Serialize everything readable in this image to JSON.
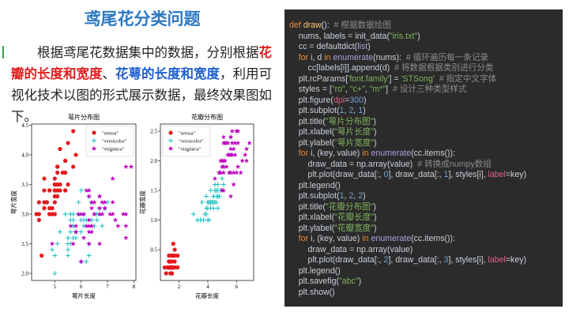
{
  "header": {
    "title": "鸢尾花分类问题"
  },
  "paragraph": {
    "part1": "根据鸢尾花数据集中的数据，分别根据",
    "highlight1": "花瓣的长度和宽度",
    "part2": "、",
    "highlight2": "花萼的长度和宽度",
    "part3": "，利用可视化技术以图的形式展示数据，最终效果图如下。"
  },
  "chart_data": [
    {
      "type": "scatter",
      "title": "萼片分布图",
      "x_label": "萼片长度",
      "y_label": "萼片宽度",
      "legend": "upper right",
      "xlim": [
        4.12,
        8.08
      ],
      "ylim": [
        1.88,
        4.52
      ],
      "xticks": [
        5,
        6,
        7,
        8
      ],
      "yticks": [
        {
          "value": 2,
          "label": "2.0"
        },
        {
          "value": 2.5,
          "label": "2.5"
        },
        {
          "value": 3,
          "label": "3.0"
        },
        {
          "value": 3.5,
          "label": "3.5"
        },
        {
          "value": 4,
          "label": "4.0"
        },
        {
          "value": 4.5,
          "label": "4.5"
        }
      ],
      "series": [
        {
          "name": "\"setosa\"",
          "color": "#e31a1c",
          "marker": "o",
          "x": [
            5.1,
            4.9,
            4.7,
            4.6,
            5.0,
            5.4,
            4.6,
            5.0,
            4.4,
            4.9,
            5.4,
            4.8,
            4.8,
            4.3,
            5.8,
            5.7,
            5.4,
            5.1,
            5.7,
            5.1,
            5.4,
            5.1,
            4.6,
            5.1,
            4.8,
            5.0,
            5.0,
            5.2,
            5.2,
            4.7,
            4.8,
            5.4,
            5.2,
            5.5,
            4.9,
            5.0,
            5.5,
            4.9,
            4.4,
            5.1,
            5.0,
            4.5,
            4.4,
            5.0,
            5.1,
            4.8,
            5.1,
            4.6,
            5.3,
            5.0
          ],
          "values": [
            3.5,
            3.0,
            3.2,
            3.1,
            3.6,
            3.9,
            3.4,
            3.4,
            2.9,
            3.1,
            3.7,
            3.4,
            3.0,
            3.0,
            4.0,
            4.4,
            3.9,
            3.5,
            3.8,
            3.8,
            3.4,
            3.7,
            3.6,
            3.3,
            3.4,
            3.0,
            3.4,
            3.5,
            3.4,
            3.2,
            3.1,
            3.4,
            4.1,
            4.2,
            3.1,
            3.2,
            3.5,
            3.1,
            3.0,
            3.4,
            3.5,
            2.3,
            3.2,
            3.5,
            3.8,
            3.0,
            3.8,
            3.2,
            3.7,
            3.3
          ]
        },
        {
          "name": "\"versicolor\"",
          "color": "#17bfbf",
          "marker": "+",
          "x": [
            7.0,
            6.4,
            6.9,
            5.5,
            6.5,
            5.7,
            6.3,
            4.9,
            6.6,
            5.2,
            5.0,
            5.9,
            6.0,
            6.1,
            5.6,
            6.7,
            5.6,
            5.8,
            6.2,
            5.6,
            5.9,
            6.1,
            6.3,
            6.1,
            6.4,
            6.6,
            6.8,
            6.7,
            6.0,
            5.7,
            5.5,
            5.5,
            5.8,
            6.0,
            5.4,
            6.0,
            6.7,
            6.3,
            5.6,
            5.5,
            5.5,
            6.1,
            5.8,
            5.0,
            5.6,
            5.7,
            5.7,
            6.2,
            5.1,
            5.7
          ],
          "values": [
            3.2,
            3.2,
            3.1,
            2.3,
            2.8,
            2.8,
            3.3,
            2.4,
            2.9,
            2.7,
            2.0,
            3.0,
            2.2,
            2.9,
            2.9,
            3.1,
            3.0,
            2.7,
            2.2,
            2.5,
            3.2,
            2.8,
            2.5,
            2.8,
            2.9,
            3.0,
            2.8,
            3.0,
            2.9,
            2.6,
            2.4,
            2.4,
            2.7,
            2.7,
            3.0,
            3.4,
            3.1,
            2.3,
            3.0,
            2.5,
            2.6,
            3.0,
            2.6,
            2.3,
            2.7,
            3.0,
            2.9,
            2.9,
            2.5,
            2.8
          ]
        },
        {
          "name": "\"virginica\"",
          "color": "#bf00bf",
          "marker": "*",
          "x": [
            6.3,
            5.8,
            7.1,
            6.3,
            6.5,
            7.6,
            4.9,
            7.3,
            6.7,
            7.2,
            6.5,
            6.4,
            6.8,
            5.7,
            5.8,
            6.4,
            6.5,
            7.7,
            7.7,
            6.0,
            6.9,
            5.6,
            7.7,
            6.3,
            6.7,
            7.2,
            6.2,
            6.1,
            6.4,
            7.2,
            7.4,
            7.9,
            6.4,
            6.3,
            6.1,
            7.7,
            6.3,
            6.4,
            6.0,
            6.9,
            6.7,
            6.9,
            5.8,
            6.8,
            6.7,
            6.7,
            6.3,
            6.5,
            6.2,
            5.9
          ],
          "values": [
            3.3,
            2.7,
            3.0,
            2.9,
            3.0,
            3.0,
            2.5,
            2.9,
            2.5,
            3.6,
            3.2,
            2.7,
            3.0,
            2.5,
            2.8,
            3.2,
            3.0,
            3.8,
            2.6,
            2.2,
            3.2,
            2.8,
            2.8,
            2.7,
            3.3,
            3.2,
            2.8,
            3.0,
            2.8,
            3.0,
            2.8,
            3.8,
            2.8,
            2.8,
            2.6,
            3.0,
            3.4,
            3.1,
            3.0,
            3.1,
            3.1,
            3.1,
            2.7,
            3.2,
            3.3,
            3.0,
            2.5,
            3.0,
            3.4,
            3.0
          ]
        }
      ]
    },
    {
      "type": "scatter",
      "title": "花瓣分布图",
      "x_label": "花瓣长度",
      "y_label": "花瓣宽度",
      "legend": "upper left",
      "xlim": [
        0.705,
        7.195
      ],
      "ylim": [
        -0.02,
        2.62
      ],
      "xticks": [
        2,
        4,
        6
      ],
      "yticks": [
        {
          "value": 0.5,
          "label": "0.5"
        },
        {
          "value": 1,
          "label": "1.0"
        },
        {
          "value": 1.5,
          "label": "1.5"
        },
        {
          "value": 2,
          "label": "2.0"
        },
        {
          "value": 2.5,
          "label": "2.5"
        }
      ],
      "series": [
        {
          "name": "\"setosa\"",
          "color": "#e31a1c",
          "marker": "o",
          "x": [
            1.4,
            1.4,
            1.3,
            1.5,
            1.4,
            1.7,
            1.4,
            1.5,
            1.4,
            1.5,
            1.5,
            1.6,
            1.4,
            1.1,
            1.2,
            1.5,
            1.3,
            1.4,
            1.7,
            1.5,
            1.7,
            1.5,
            1.0,
            1.7,
            1.9,
            1.6,
            1.6,
            1.5,
            1.4,
            1.6,
            1.6,
            1.5,
            1.5,
            1.4,
            1.5,
            1.2,
            1.3,
            1.5,
            1.3,
            1.5,
            1.3,
            1.3,
            1.3,
            1.6,
            1.9,
            1.4,
            1.6,
            1.4,
            1.5,
            1.4
          ],
          "values": [
            0.2,
            0.2,
            0.2,
            0.2,
            0.2,
            0.4,
            0.3,
            0.2,
            0.2,
            0.1,
            0.2,
            0.2,
            0.1,
            0.1,
            0.2,
            0.4,
            0.4,
            0.3,
            0.3,
            0.3,
            0.2,
            0.4,
            0.2,
            0.5,
            0.2,
            0.2,
            0.4,
            0.2,
            0.2,
            0.2,
            0.2,
            0.4,
            0.1,
            0.2,
            0.1,
            0.2,
            0.2,
            0.1,
            0.2,
            0.2,
            0.3,
            0.3,
            0.2,
            0.6,
            0.4,
            0.3,
            0.2,
            0.2,
            0.2,
            0.2
          ]
        },
        {
          "name": "\"versicolor\"",
          "color": "#17bfbf",
          "marker": "+",
          "x": [
            4.7,
            4.5,
            4.9,
            4.0,
            4.6,
            4.5,
            4.7,
            3.3,
            4.6,
            3.9,
            3.5,
            4.2,
            4.0,
            4.7,
            3.6,
            4.4,
            4.5,
            4.1,
            4.5,
            3.9,
            4.8,
            4.0,
            4.9,
            4.7,
            4.3,
            4.4,
            4.8,
            5.0,
            4.5,
            3.5,
            3.8,
            3.7,
            3.9,
            5.1,
            4.5,
            4.5,
            4.7,
            4.4,
            4.1,
            4.0,
            4.4,
            4.6,
            4.0,
            3.3,
            4.2,
            4.2,
            4.2,
            4.3,
            3.0,
            4.1
          ],
          "values": [
            1.4,
            1.5,
            1.5,
            1.3,
            1.5,
            1.3,
            1.6,
            1.0,
            1.3,
            1.4,
            1.0,
            1.5,
            1.0,
            1.4,
            1.3,
            1.4,
            1.5,
            1.0,
            1.5,
            1.1,
            1.8,
            1.3,
            1.5,
            1.2,
            1.3,
            1.4,
            1.4,
            1.7,
            1.5,
            1.0,
            1.1,
            1.0,
            1.2,
            1.6,
            1.5,
            1.6,
            1.5,
            1.3,
            1.3,
            1.3,
            1.2,
            1.4,
            1.2,
            1.0,
            1.3,
            1.2,
            1.3,
            1.3,
            1.1,
            1.3
          ]
        },
        {
          "name": "\"virginica\"",
          "color": "#bf00bf",
          "marker": "*",
          "x": [
            6.0,
            5.1,
            5.9,
            5.6,
            5.8,
            6.6,
            4.5,
            6.3,
            5.8,
            6.1,
            5.1,
            5.3,
            5.5,
            5.0,
            5.1,
            5.3,
            5.5,
            6.7,
            6.9,
            5.0,
            5.7,
            4.9,
            6.7,
            4.9,
            5.7,
            6.0,
            4.8,
            4.9,
            5.6,
            5.8,
            6.1,
            6.4,
            5.6,
            5.1,
            5.6,
            6.1,
            5.6,
            5.5,
            4.8,
            5.4,
            5.6,
            5.1,
            5.1,
            5.9,
            5.7,
            5.2,
            5.0,
            5.2,
            5.4,
            5.1
          ],
          "values": [
            2.5,
            1.9,
            2.1,
            1.8,
            2.2,
            2.1,
            1.7,
            1.8,
            1.8,
            2.5,
            2.0,
            1.9,
            2.1,
            2.0,
            2.4,
            2.3,
            1.8,
            2.2,
            2.3,
            1.5,
            2.3,
            2.0,
            2.0,
            1.8,
            2.1,
            1.8,
            1.8,
            1.8,
            2.1,
            1.6,
            1.9,
            2.0,
            2.2,
            1.5,
            1.4,
            2.3,
            2.4,
            1.8,
            1.8,
            2.1,
            2.4,
            2.3,
            1.9,
            2.3,
            2.5,
            2.3,
            1.9,
            2.0,
            2.3,
            1.8
          ]
        }
      ]
    }
  ],
  "code": {
    "lines": [
      "def draw():  # 根据数据绘图",
      "    nums, labels = init_data(\"iris.txt\")",
      "    cc = defaultdict(list)",
      "    for i, d in enumerate(nums):  # 循环遍历每一条记录",
      "        cc[labels[i]].append(d)  # 将数据根据类别进行分类",
      "    plt.rcParams['font.family'] = 'STSong'  # 指定中文字体",
      "    styles = [\"ro\", \"c+\", \"m*\"]  # 设计三种类型样式",
      "    plt.figure(dpi=300)",
      "    plt.subplot(1, 2, 1)",
      "    plt.title(\"萼片分布图\")",
      "    plt.xlabel(\"萼片长度\")",
      "    plt.ylabel(\"萼片宽度\")",
      "    for i, (key, value) in enumerate(cc.items()):",
      "        draw_data = np.array(value)  # 转换成numpy数组",
      "        plt.plot(draw_data[:, 0], draw_data[:, 1], styles[i], label=key)",
      "    plt.legend()",
      "    plt.subplot(1, 2, 2)",
      "    plt.title(\"花瓣分布图\")",
      "    plt.xlabel(\"花瓣长度\")",
      "    plt.ylabel(\"花瓣宽度\")",
      "    for i, (key, value) in enumerate(cc.items()):",
      "        draw_data = np.array(value)",
      "        plt.plot(draw_data[:, 2], draw_data[:, 3], styles[i], label=key)",
      "    plt.legend()",
      "    plt.savefig(\"abc\")",
      "    plt.show()"
    ]
  }
}
